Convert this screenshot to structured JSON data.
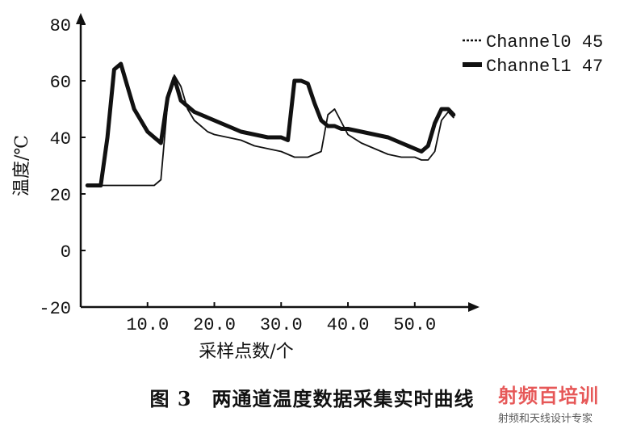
{
  "chart_data": {
    "type": "line",
    "title": "",
    "xlabel": "采样点数/个",
    "ylabel": "温度/℃",
    "xlim": [
      0,
      58
    ],
    "ylim": [
      -20,
      80
    ],
    "xticks": [
      10,
      20,
      30,
      40,
      50
    ],
    "xtick_labels": [
      "10.0",
      "20.0",
      "30.0",
      "40.0",
      "50.0"
    ],
    "yticks": [
      -20,
      0,
      20,
      40,
      60,
      80
    ],
    "ytick_labels": [
      "-20",
      "0",
      "20",
      "40",
      "60",
      "80"
    ],
    "legend_position": "top-right",
    "grid": false,
    "series": [
      {
        "name": "Channel0 45",
        "style": "thin",
        "x": [
          1,
          5,
          6,
          6.5,
          7,
          8,
          9,
          10,
          11,
          12,
          13,
          14,
          15,
          16,
          17,
          18,
          19,
          20,
          22,
          24,
          26,
          28,
          30,
          31,
          32,
          33,
          34,
          35,
          36,
          37,
          38,
          40,
          42,
          44,
          46,
          48,
          50,
          51,
          52,
          53,
          54,
          55,
          55.8
        ],
        "values": [
          23,
          23,
          23,
          23,
          23,
          23,
          23,
          23,
          23,
          25,
          52,
          62,
          58,
          50,
          46,
          44,
          42,
          41,
          40,
          39,
          37,
          36,
          35,
          34,
          33,
          33,
          33,
          34,
          35,
          48,
          50,
          41,
          38,
          36,
          34,
          33,
          33,
          32,
          32,
          35,
          46,
          49,
          47
        ]
      },
      {
        "name": "Channel1 47",
        "style": "thick",
        "x": [
          1,
          3,
          4,
          5,
          6,
          7,
          8,
          9,
          10,
          11,
          12,
          13,
          14,
          15,
          16,
          17,
          18,
          19,
          20,
          21,
          22,
          24,
          26,
          28,
          30,
          31,
          32,
          33,
          34,
          35,
          36,
          37,
          38,
          39,
          40,
          42,
          44,
          46,
          48,
          50,
          51,
          52,
          53,
          54,
          55,
          55.8
        ],
        "values": [
          23,
          23,
          40,
          64,
          66,
          58,
          50,
          46,
          42,
          40,
          38,
          54,
          61,
          53,
          51,
          49,
          48,
          47,
          46,
          45,
          44,
          42,
          41,
          40,
          40,
          39,
          60,
          60,
          59,
          52,
          46,
          44,
          44,
          43,
          43,
          42,
          41,
          40,
          38,
          36,
          35,
          37,
          45,
          50,
          50,
          48
        ]
      }
    ]
  },
  "caption": "图 3　两通道温度数据采集实时曲线",
  "watermark": {
    "logo_text": "射频百培训",
    "sub_text": "射频和天线设计专家"
  },
  "colors": {
    "line": "#111111",
    "axis": "#111111",
    "watermark_accent": "#e23b3b"
  }
}
